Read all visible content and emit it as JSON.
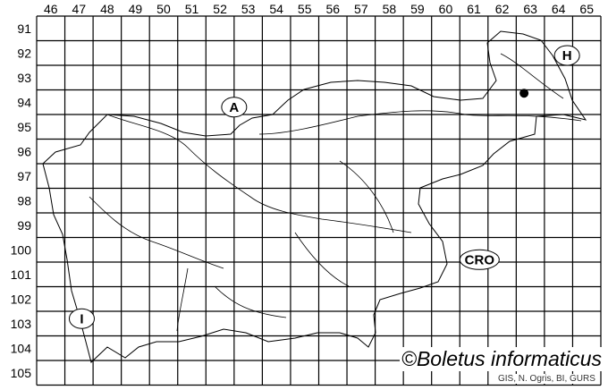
{
  "map": {
    "col_labels": [
      "46",
      "47",
      "48",
      "49",
      "50",
      "51",
      "52",
      "53",
      "54",
      "55",
      "56",
      "57",
      "58",
      "59",
      "60",
      "61",
      "62",
      "63",
      "64",
      "65"
    ],
    "row_labels": [
      "91",
      "92",
      "93",
      "94",
      "95",
      "96",
      "97",
      "98",
      "99",
      "100",
      "101",
      "102",
      "103",
      "104",
      "105"
    ],
    "countries": [
      {
        "label": "A",
        "col": 52.5,
        "row": 94.2
      },
      {
        "label": "H",
        "col": 64.3,
        "row": 92.1
      },
      {
        "label": "CRO",
        "col": 61.2,
        "row": 100.4
      },
      {
        "label": "I",
        "col": 47.1,
        "row": 102.8
      }
    ],
    "occurrences": [
      {
        "col": 63,
        "row": 94,
        "color": "#000000"
      }
    ],
    "title": "©Boletus informaticus",
    "credit": "GIS, N. Ogris, BI, GURS"
  }
}
